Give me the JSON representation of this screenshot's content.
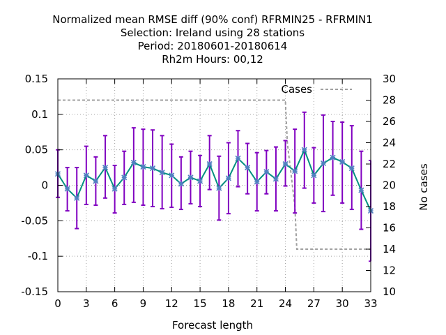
{
  "chart_data": {
    "type": "line",
    "title_lines": [
      "Normalized mean RMSE diff (90% conf) RFRMIN25 - RFRMIN1",
      "Selection: Ireland using    28 stations",
      "Period: 20180601-20180614",
      "Rh2m   Hours:  00,12"
    ],
    "xlabel": "Forecast length",
    "ylabel": "",
    "y2label": "No cases",
    "xlim": [
      0,
      33
    ],
    "ylim": [
      -0.15,
      0.15
    ],
    "y2lim": [
      10,
      30
    ],
    "x_ticks": [
      0,
      3,
      6,
      9,
      12,
      15,
      18,
      21,
      24,
      27,
      30,
      33
    ],
    "y_ticks": [
      -0.15,
      -0.1,
      -0.05,
      0,
      0.05,
      0.1,
      0.15
    ],
    "y_tick_labels": [
      "-0.15",
      "-0.1",
      "-0.05",
      "0",
      "0.05",
      "0.1",
      "0.15"
    ],
    "y2_ticks": [
      10,
      12,
      14,
      16,
      18,
      20,
      22,
      24,
      26,
      28,
      30
    ],
    "grid": true,
    "legend_position": "top-right",
    "series": [
      {
        "name": "",
        "role": "rmse-diff",
        "color": "#009080",
        "marker_color": "#5080c0",
        "x": [
          0,
          1,
          2,
          3,
          4,
          5,
          6,
          7,
          8,
          9,
          10,
          11,
          12,
          13,
          14,
          15,
          16,
          17,
          18,
          19,
          20,
          21,
          22,
          23,
          24,
          25,
          26,
          27,
          28,
          29,
          30,
          31,
          32,
          33
        ],
        "y": [
          0.016,
          -0.005,
          -0.018,
          0.014,
          0.006,
          0.025,
          -0.005,
          0.011,
          0.032,
          0.026,
          0.024,
          0.018,
          0.014,
          0.002,
          0.011,
          0.006,
          0.03,
          -0.004,
          0.01,
          0.038,
          0.025,
          0.005,
          0.019,
          0.009,
          0.03,
          0.02,
          0.05,
          0.014,
          0.031,
          0.039,
          0.033,
          0.024,
          -0.007,
          -0.036
        ],
        "err_low": [
          -0.017,
          -0.036,
          -0.061,
          -0.027,
          -0.028,
          -0.018,
          -0.039,
          -0.027,
          -0.024,
          -0.028,
          -0.03,
          -0.033,
          -0.031,
          -0.034,
          -0.026,
          -0.03,
          -0.006,
          -0.049,
          -0.04,
          -0.002,
          -0.012,
          -0.036,
          -0.012,
          -0.036,
          -0.001,
          -0.039,
          -0.004,
          -0.025,
          -0.037,
          -0.014,
          -0.025,
          -0.034,
          -0.062,
          -0.107
        ],
        "err_high": [
          0.05,
          0.025,
          0.025,
          0.055,
          0.04,
          0.07,
          0.028,
          0.048,
          0.081,
          0.079,
          0.078,
          0.07,
          0.058,
          0.04,
          0.048,
          0.042,
          0.07,
          0.041,
          0.06,
          0.077,
          0.059,
          0.046,
          0.049,
          0.054,
          0.063,
          0.079,
          0.103,
          0.053,
          0.099,
          0.09,
          0.089,
          0.084,
          0.048,
          0.035
        ],
        "error_bar_color": "#8000c0"
      },
      {
        "name": "Cases",
        "role": "cases",
        "color": "#a0a0a0",
        "axis": "y2",
        "x": [
          0,
          24,
          24.2,
          25,
          25.2,
          33
        ],
        "y": [
          28,
          28,
          24,
          18,
          14,
          14
        ]
      }
    ]
  }
}
